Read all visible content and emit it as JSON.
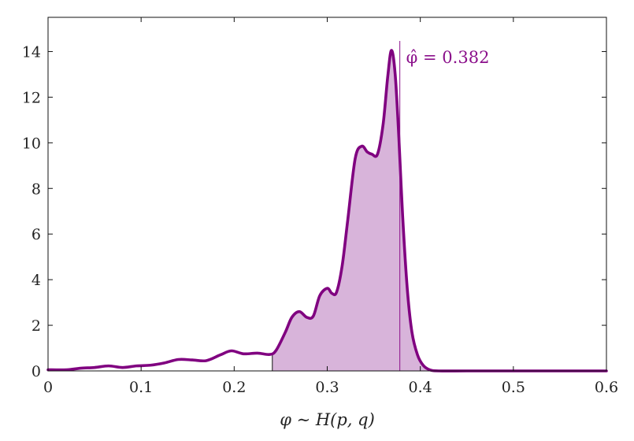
{
  "chart_data": {
    "type": "area",
    "title": "",
    "xlabel": "φ ∼ H(p, q)",
    "ylabel": "",
    "xlim": [
      0,
      0.6
    ],
    "ylim": [
      0,
      15.5
    ],
    "x_ticks": [
      0,
      0.1,
      0.2,
      0.3,
      0.4,
      0.5,
      0.6
    ],
    "x_tick_labels": [
      "0",
      "0.1",
      "0.2",
      "0.3",
      "0.4",
      "0.5",
      "0.6"
    ],
    "y_ticks": [
      0,
      2,
      4,
      6,
      8,
      10,
      12,
      14
    ],
    "y_tick_labels": [
      "0",
      "2",
      "4",
      "6",
      "8",
      "10",
      "12",
      "14"
    ],
    "grid": false,
    "series": [
      {
        "x": [
          0,
          0.02,
          0.035,
          0.05,
          0.065,
          0.08,
          0.095,
          0.11,
          0.125,
          0.14,
          0.155,
          0.17,
          0.185,
          0.197,
          0.21,
          0.225,
          0.238,
          0.245,
          0.255,
          0.262,
          0.27,
          0.278,
          0.285,
          0.292,
          0.3,
          0.305,
          0.31,
          0.316,
          0.322,
          0.33,
          0.337,
          0.343,
          0.348,
          0.354,
          0.36,
          0.365,
          0.369,
          0.373,
          0.377,
          0.381,
          0.386,
          0.391,
          0.397,
          0.403,
          0.41,
          0.42,
          0.45,
          0.5,
          0.55,
          0.6
        ],
        "y": [
          0.05,
          0.05,
          0.12,
          0.15,
          0.22,
          0.15,
          0.22,
          0.25,
          0.35,
          0.5,
          0.48,
          0.45,
          0.7,
          0.88,
          0.75,
          0.78,
          0.72,
          0.9,
          1.7,
          2.35,
          2.6,
          2.35,
          2.4,
          3.3,
          3.62,
          3.4,
          3.45,
          4.6,
          6.6,
          9.3,
          9.85,
          9.6,
          9.5,
          9.5,
          10.8,
          12.9,
          14.05,
          13.0,
          10.2,
          6.8,
          3.6,
          1.7,
          0.7,
          0.25,
          0.05,
          0.0,
          0.0,
          0.0,
          0.0,
          0.0
        ],
        "color": "#800080"
      }
    ],
    "shaded_region": {
      "from": 0.241,
      "to": 0.41,
      "color": "#d8b4da"
    },
    "annotation": {
      "marker_x": 0.378,
      "text": "φ̂ = 0.382",
      "color": "#8b108b"
    }
  }
}
